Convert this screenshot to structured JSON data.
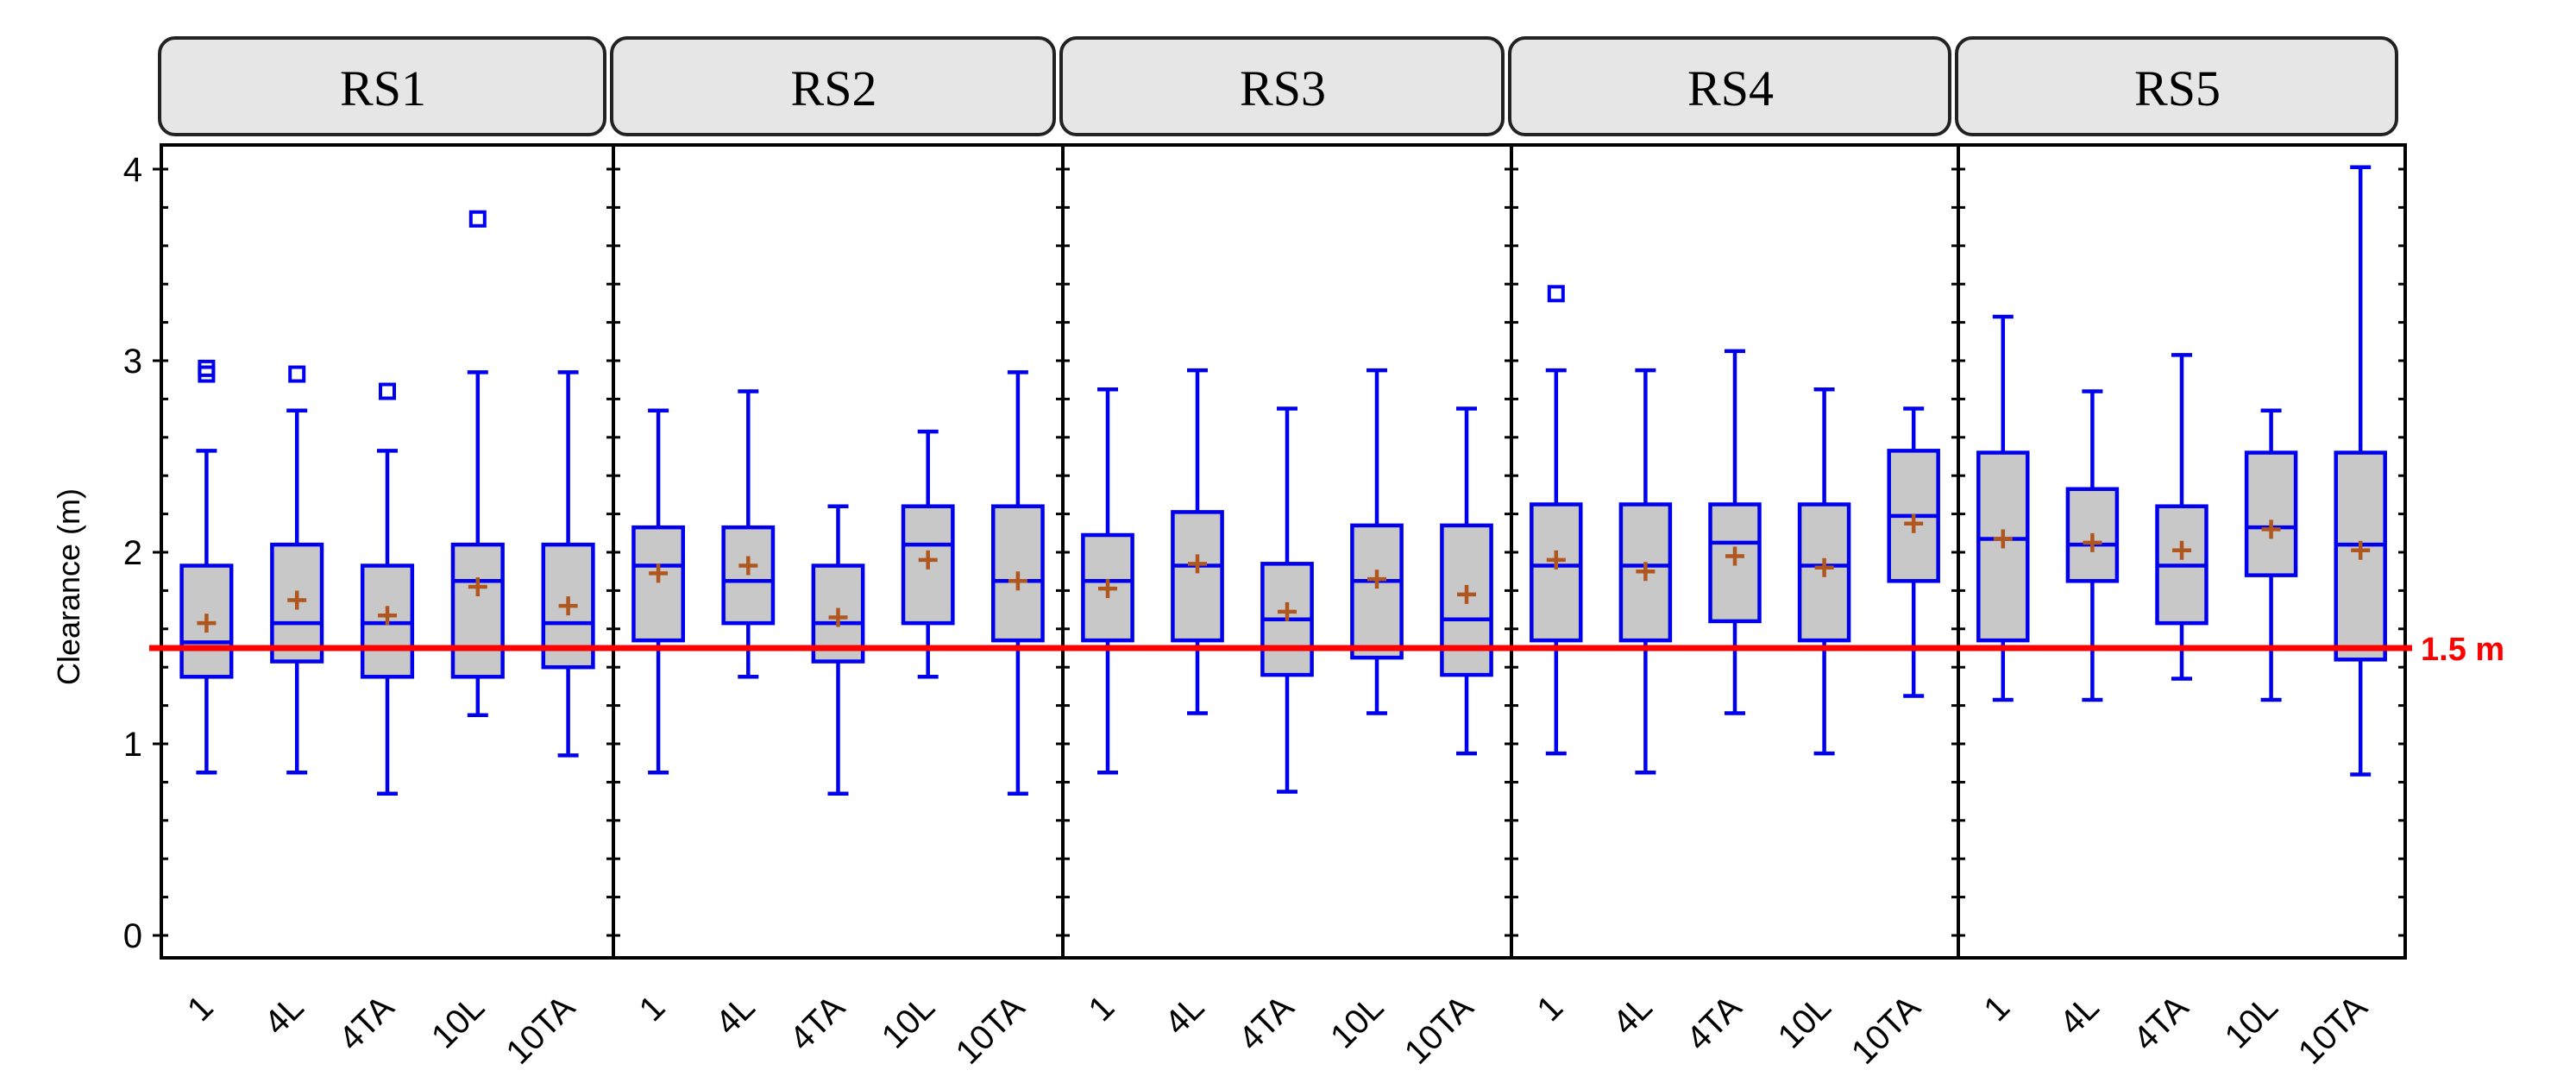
{
  "chart_data": {
    "type": "boxplot",
    "title": "",
    "ylabel": "Clearance (m)",
    "xlabel": "",
    "ylim": [
      -0.1,
      4.15
    ],
    "yticks": [
      0,
      1,
      2,
      3,
      4
    ],
    "categories": [
      "1",
      "4L",
      "4TA",
      "10L",
      "10TA"
    ],
    "reference_line": {
      "value": 1.5,
      "label": "1.5 m",
      "color": "#ff0000"
    },
    "colors": {
      "box_stroke": "#0000ee",
      "box_fill": "#c8c8c8",
      "mean_marker": "#b0561f",
      "strip_fill": "#e6e6e6"
    },
    "panels": [
      {
        "name": "RS1",
        "boxes": [
          {
            "category": "1",
            "whisker_low": 0.85,
            "q1": 1.35,
            "median": 1.53,
            "q3": 1.93,
            "whisker_high": 2.53,
            "mean": 1.63,
            "outliers": [
              2.93,
              2.96
            ]
          },
          {
            "category": "4L",
            "whisker_low": 0.85,
            "q1": 1.43,
            "median": 1.63,
            "q3": 2.04,
            "whisker_high": 2.74,
            "mean": 1.75,
            "outliers": [
              2.93
            ]
          },
          {
            "category": "4TA",
            "whisker_low": 0.74,
            "q1": 1.35,
            "median": 1.63,
            "q3": 1.93,
            "whisker_high": 2.53,
            "mean": 1.67,
            "outliers": [
              2.84
            ]
          },
          {
            "category": "10L",
            "whisker_low": 1.15,
            "q1": 1.35,
            "median": 1.85,
            "q3": 2.04,
            "whisker_high": 2.94,
            "mean": 1.82,
            "outliers": [
              3.74
            ]
          },
          {
            "category": "10TA",
            "whisker_low": 0.94,
            "q1": 1.4,
            "median": 1.63,
            "q3": 2.04,
            "whisker_high": 2.94,
            "mean": 1.72,
            "outliers": []
          }
        ]
      },
      {
        "name": "RS2",
        "boxes": [
          {
            "category": "1",
            "whisker_low": 0.85,
            "q1": 1.54,
            "median": 1.93,
            "q3": 2.13,
            "whisker_high": 2.74,
            "mean": 1.89,
            "outliers": []
          },
          {
            "category": "4L",
            "whisker_low": 1.35,
            "q1": 1.63,
            "median": 1.85,
            "q3": 2.13,
            "whisker_high": 2.84,
            "mean": 1.93,
            "outliers": []
          },
          {
            "category": "4TA",
            "whisker_low": 0.74,
            "q1": 1.43,
            "median": 1.63,
            "q3": 1.93,
            "whisker_high": 2.24,
            "mean": 1.66,
            "outliers": []
          },
          {
            "category": "10L",
            "whisker_low": 1.35,
            "q1": 1.63,
            "median": 2.04,
            "q3": 2.24,
            "whisker_high": 2.63,
            "mean": 1.96,
            "outliers": []
          },
          {
            "category": "10TA",
            "whisker_low": 0.74,
            "q1": 1.54,
            "median": 1.85,
            "q3": 2.24,
            "whisker_high": 2.94,
            "mean": 1.85,
            "outliers": []
          }
        ]
      },
      {
        "name": "RS3",
        "boxes": [
          {
            "category": "1",
            "whisker_low": 0.85,
            "q1": 1.54,
            "median": 1.85,
            "q3": 2.09,
            "whisker_high": 2.85,
            "mean": 1.81,
            "outliers": []
          },
          {
            "category": "4L",
            "whisker_low": 1.16,
            "q1": 1.54,
            "median": 1.93,
            "q3": 2.21,
            "whisker_high": 2.95,
            "mean": 1.94,
            "outliers": []
          },
          {
            "category": "4TA",
            "whisker_low": 0.75,
            "q1": 1.36,
            "median": 1.65,
            "q3": 1.94,
            "whisker_high": 2.75,
            "mean": 1.69,
            "outliers": []
          },
          {
            "category": "10L",
            "whisker_low": 1.16,
            "q1": 1.45,
            "median": 1.85,
            "q3": 2.14,
            "whisker_high": 2.95,
            "mean": 1.86,
            "outliers": []
          },
          {
            "category": "10TA",
            "whisker_low": 0.95,
            "q1": 1.36,
            "median": 1.65,
            "q3": 2.14,
            "whisker_high": 2.75,
            "mean": 1.78,
            "outliers": []
          }
        ]
      },
      {
        "name": "RS4",
        "boxes": [
          {
            "category": "1",
            "whisker_low": 0.95,
            "q1": 1.54,
            "median": 1.93,
            "q3": 2.25,
            "whisker_high": 2.95,
            "mean": 1.96,
            "outliers": [
              3.35
            ]
          },
          {
            "category": "4L",
            "whisker_low": 0.85,
            "q1": 1.54,
            "median": 1.93,
            "q3": 2.25,
            "whisker_high": 2.95,
            "mean": 1.9,
            "outliers": []
          },
          {
            "category": "4TA",
            "whisker_low": 1.16,
            "q1": 1.64,
            "median": 2.05,
            "q3": 2.25,
            "whisker_high": 3.05,
            "mean": 1.98,
            "outliers": []
          },
          {
            "category": "10L",
            "whisker_low": 0.95,
            "q1": 1.54,
            "median": 1.93,
            "q3": 2.25,
            "whisker_high": 2.85,
            "mean": 1.92,
            "outliers": []
          },
          {
            "category": "10TA",
            "whisker_low": 1.25,
            "q1": 1.85,
            "median": 2.19,
            "q3": 2.53,
            "whisker_high": 2.75,
            "mean": 2.15,
            "outliers": []
          }
        ]
      },
      {
        "name": "RS5",
        "boxes": [
          {
            "category": "1",
            "whisker_low": 1.23,
            "q1": 1.54,
            "median": 2.07,
            "q3": 2.52,
            "whisker_high": 3.23,
            "mean": 2.07,
            "outliers": []
          },
          {
            "category": "4L",
            "whisker_low": 1.23,
            "q1": 1.85,
            "median": 2.04,
            "q3": 2.33,
            "whisker_high": 2.84,
            "mean": 2.05,
            "outliers": []
          },
          {
            "category": "4TA",
            "whisker_low": 1.34,
            "q1": 1.63,
            "median": 1.93,
            "q3": 2.24,
            "whisker_high": 3.03,
            "mean": 2.01,
            "outliers": []
          },
          {
            "category": "10L",
            "whisker_low": 1.23,
            "q1": 1.88,
            "median": 2.13,
            "q3": 2.52,
            "whisker_high": 2.74,
            "mean": 2.12,
            "outliers": []
          },
          {
            "category": "10TA",
            "whisker_low": 0.84,
            "q1": 1.44,
            "median": 2.04,
            "q3": 2.52,
            "whisker_high": 4.01,
            "mean": 2.01,
            "outliers": []
          }
        ]
      }
    ]
  }
}
